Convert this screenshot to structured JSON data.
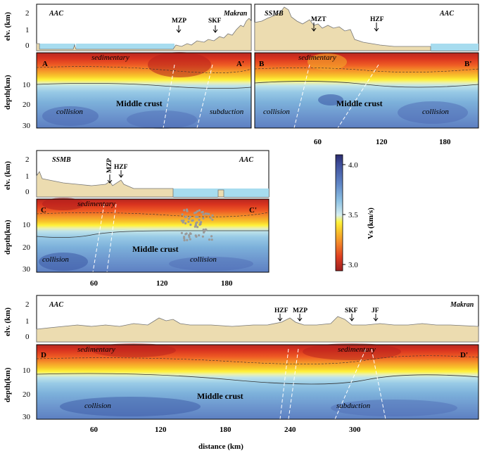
{
  "figure": {
    "panels": [
      {
        "id": "AA",
        "start_label": "A",
        "end_label": "A'",
        "left_region": "AAC",
        "right_region": "Makran",
        "faults": [
          "MZP",
          "SKF"
        ],
        "middle": "Middle crust",
        "regime_left": "collision",
        "regime_right": "subduction",
        "top_layer": "sedimentary"
      },
      {
        "id": "BB",
        "start_label": "B",
        "end_label": "B'",
        "left_region": "SSMB",
        "right_region": "AAC",
        "faults": [
          "MZT",
          "HZF"
        ],
        "middle": "Middle crust",
        "regime_left": "collision",
        "regime_right": "collision",
        "top_layer": "sedimentary",
        "xticks": [
          "60",
          "120",
          "180"
        ]
      },
      {
        "id": "CC",
        "start_label": "C",
        "end_label": "C'",
        "left_region": "SSMB",
        "right_region": "AAC",
        "faults": [
          "MZP",
          "HZF"
        ],
        "middle": "Middle crust",
        "regime_left": "collision",
        "regime_right": "collision",
        "top_layer": "sedimentary",
        "xticks": [
          "60",
          "120",
          "180"
        ]
      },
      {
        "id": "DD",
        "start_label": "D",
        "end_label": "D'",
        "left_region": "AAC",
        "right_region": "Makran",
        "faults": [
          "HZF",
          "MZP",
          "SKF",
          "JF"
        ],
        "middle": "Middle crust",
        "regime_left": "collision",
        "regime_right": "subduction",
        "top_layer": "sedimentary",
        "top_layer_2": "sedimentary",
        "xticks": [
          "60",
          "120",
          "180",
          "240",
          "300"
        ]
      }
    ],
    "axes": {
      "elev_label": "elv. (km)",
      "elev_ticks": [
        "2",
        "1",
        "0"
      ],
      "depth_label": "depth(km)",
      "depth_label_b": "depth (km)",
      "depth_ticks": [
        "10",
        "20",
        "30"
      ],
      "distance_label": "distance (km)"
    },
    "colorbar": {
      "label": "Vs (km/s)",
      "ticks": [
        "4.0",
        "3.5",
        "3.0"
      ],
      "vmin": 2.9,
      "vmax": 4.1
    }
  }
}
